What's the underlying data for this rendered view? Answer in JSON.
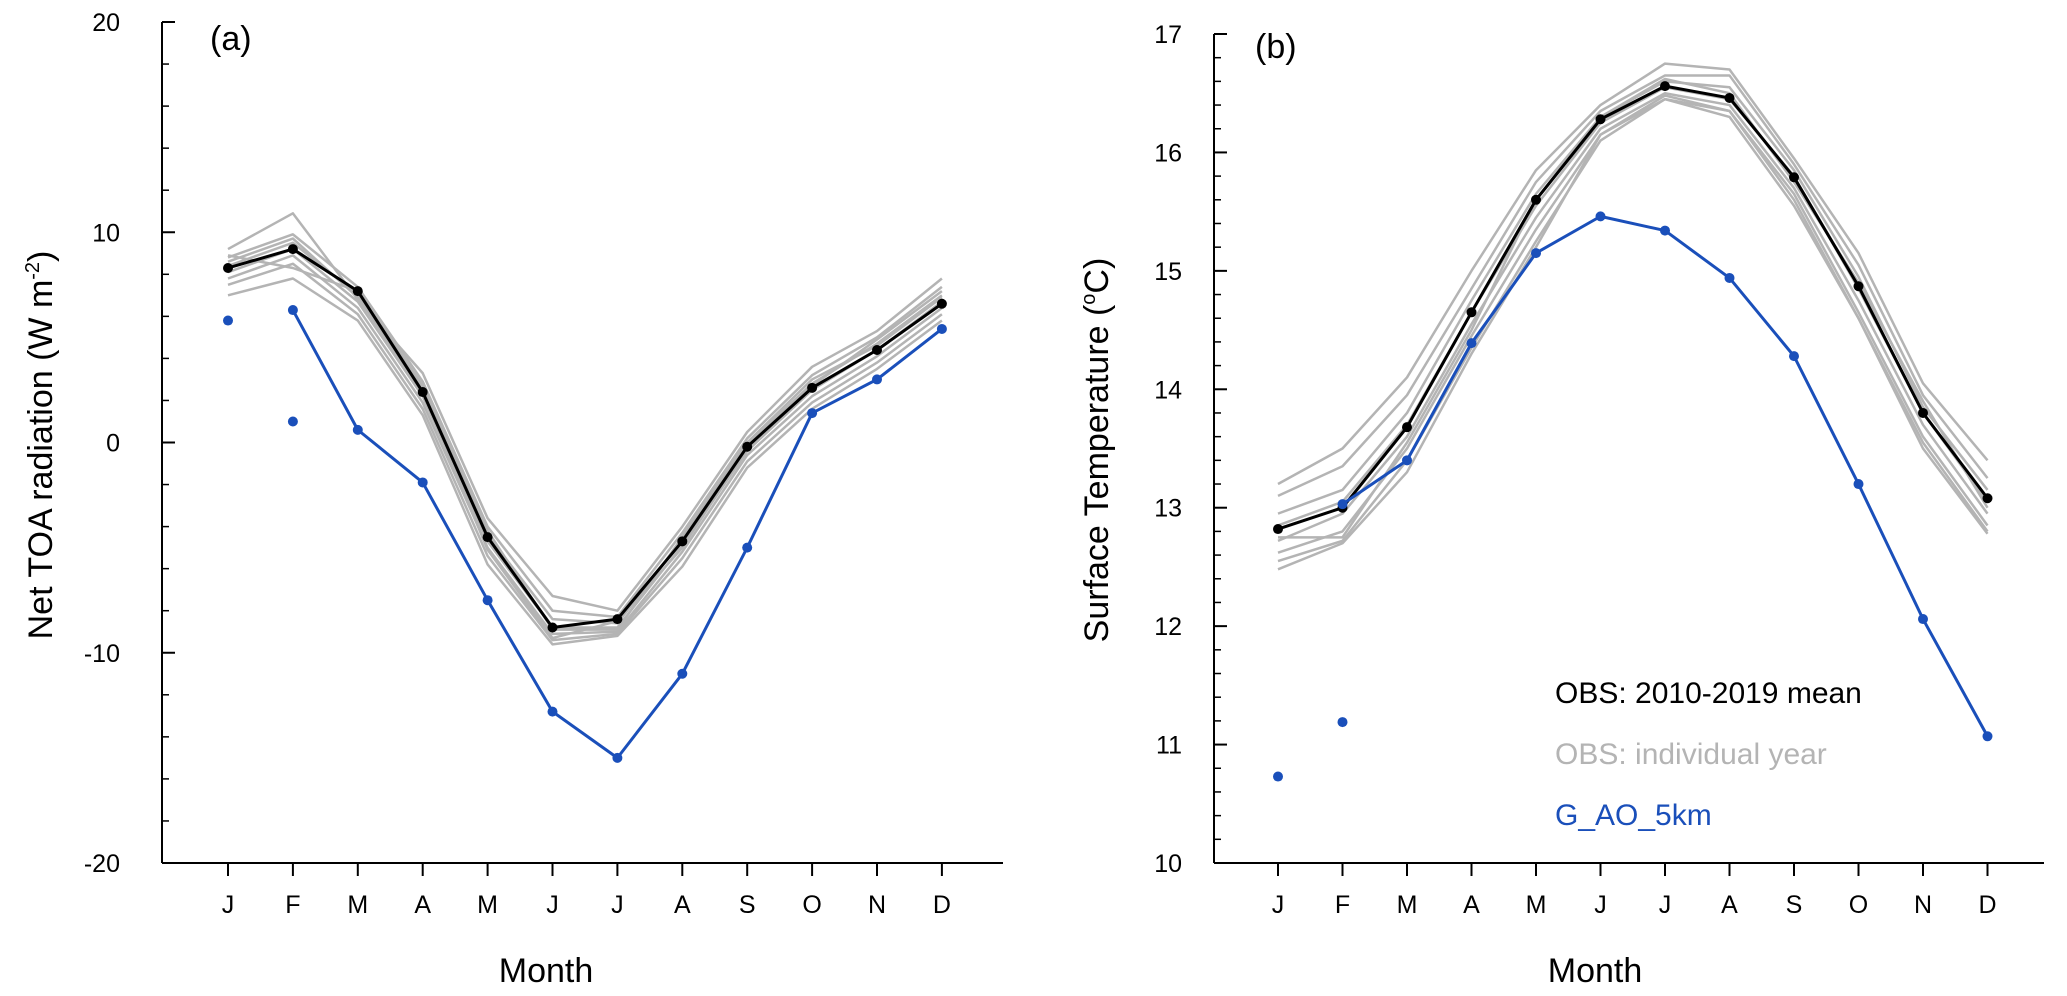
{
  "colors": {
    "mean": "#000000",
    "individual": "#b4b4b4",
    "model": "#1a4fba"
  },
  "chart_data": [
    {
      "type": "line",
      "panel_label": "(a)",
      "xlabel": "Month",
      "ylabel_main": "Net TOA radiation (W m",
      "ylabel_sup": "-2",
      "ylabel_close": ")",
      "categories": [
        "J",
        "F",
        "M",
        "A",
        "M",
        "J",
        "J",
        "A",
        "S",
        "O",
        "N",
        "D"
      ],
      "ylim": [
        -20,
        20
      ],
      "yticks": [
        -20,
        -10,
        0,
        10,
        20
      ],
      "ytick_labels": [
        "-20",
        "-10",
        "0",
        "10",
        "20"
      ],
      "series": [
        {
          "name": "OBS: individual year",
          "role": "individual",
          "values": [
            9.2,
            10.9,
            6.8,
            3.3,
            -3.6,
            -7.3,
            -8.0,
            -4.0,
            0.5,
            3.6,
            5.3,
            7.8
          ]
        },
        {
          "name": "OBS: individual year",
          "role": "individual",
          "values": [
            8.8,
            9.9,
            7.4,
            2.9,
            -4.0,
            -8.0,
            -8.3,
            -4.3,
            0.2,
            3.2,
            5.0,
            7.4
          ]
        },
        {
          "name": "OBS: individual year",
          "role": "individual",
          "values": [
            8.4,
            9.5,
            7.0,
            2.5,
            -4.4,
            -8.4,
            -8.6,
            -4.6,
            -0.1,
            2.8,
            4.7,
            7.0
          ]
        },
        {
          "name": "OBS: individual year",
          "role": "individual",
          "values": [
            8.1,
            9.2,
            6.7,
            2.2,
            -4.7,
            -8.8,
            -8.8,
            -4.9,
            -0.4,
            2.5,
            4.4,
            6.7
          ]
        },
        {
          "name": "OBS: individual year",
          "role": "individual",
          "values": [
            7.8,
            8.9,
            6.4,
            1.9,
            -5.0,
            -9.1,
            -9.0,
            -5.2,
            -0.6,
            2.2,
            4.1,
            6.4
          ]
        },
        {
          "name": "OBS: individual year",
          "role": "individual",
          "values": [
            7.5,
            8.5,
            6.1,
            1.6,
            -5.4,
            -9.4,
            -9.1,
            -5.5,
            -0.9,
            1.9,
            3.8,
            6.1
          ]
        },
        {
          "name": "OBS: individual year",
          "role": "individual",
          "values": [
            7.0,
            7.8,
            5.8,
            1.3,
            -5.8,
            -9.6,
            -9.2,
            -5.9,
            -1.2,
            1.6,
            3.5,
            5.8
          ]
        },
        {
          "name": "OBS: individual year",
          "role": "individual",
          "values": [
            8.9,
            8.3,
            7.2,
            2.7,
            -4.2,
            -8.9,
            -8.9,
            -4.5,
            0.0,
            3.0,
            4.6,
            6.9
          ]
        },
        {
          "name": "OBS: individual year",
          "role": "individual",
          "values": [
            8.6,
            9.7,
            6.9,
            2.4,
            -5.1,
            -9.3,
            -8.5,
            -5.0,
            -0.3,
            2.7,
            4.9,
            7.2
          ]
        },
        {
          "name": "OBS: 2010-2019 mean",
          "role": "mean",
          "values": [
            8.3,
            9.2,
            7.2,
            2.4,
            -4.5,
            -8.8,
            -8.4,
            -4.7,
            -0.2,
            2.6,
            4.4,
            6.6
          ]
        },
        {
          "name": "G_AO_5km",
          "role": "model",
          "values": [
            5.8,
            1.0,
            0.6,
            -1.9,
            -7.5,
            -12.8,
            -15.0,
            -11.0,
            -5.0,
            1.4,
            3.0,
            5.4
          ],
          "isolated_points": [
            0,
            1
          ],
          "extra_points": [
            {
              "index": 1,
              "value": 6.3
            }
          ]
        }
      ]
    },
    {
      "type": "line",
      "panel_label": "(b)",
      "xlabel": "Month",
      "ylabel_main": "Surface Temperature (",
      "ylabel_sup": "o",
      "ylabel_close": "C)",
      "categories": [
        "J",
        "F",
        "M",
        "A",
        "M",
        "J",
        "J",
        "A",
        "S",
        "O",
        "N",
        "D"
      ],
      "ylim": [
        10,
        17
      ],
      "yticks": [
        10,
        11,
        12,
        13,
        14,
        15,
        16,
        17
      ],
      "ytick_labels": [
        "10",
        "11",
        "12",
        "13",
        "14",
        "15",
        "16",
        "17"
      ],
      "legend": {
        "placement": "bottom-right",
        "entries": [
          {
            "label": "OBS: 2010-2019 mean",
            "role": "mean"
          },
          {
            "label": "OBS: individual year",
            "role": "individual"
          },
          {
            "label": "G_AO_5km",
            "role": "model"
          }
        ]
      },
      "series": [
        {
          "name": "OBS: individual year",
          "role": "individual",
          "values": [
            13.2,
            13.5,
            14.1,
            15.0,
            15.85,
            16.4,
            16.75,
            16.7,
            15.95,
            15.15,
            14.05,
            13.4
          ]
        },
        {
          "name": "OBS: individual year",
          "role": "individual",
          "values": [
            13.1,
            13.35,
            13.95,
            14.85,
            15.75,
            16.35,
            16.65,
            16.65,
            15.9,
            15.05,
            13.95,
            13.25
          ]
        },
        {
          "name": "OBS: individual year",
          "role": "individual",
          "values": [
            12.95,
            13.15,
            13.8,
            14.75,
            15.65,
            16.3,
            16.6,
            16.55,
            15.85,
            14.95,
            13.85,
            13.15
          ]
        },
        {
          "name": "OBS: individual year",
          "role": "individual",
          "values": [
            12.85,
            13.05,
            13.7,
            14.65,
            15.55,
            16.25,
            16.55,
            16.45,
            15.8,
            14.85,
            13.8,
            13.05
          ]
        },
        {
          "name": "OBS: individual year",
          "role": "individual",
          "values": [
            12.72,
            12.95,
            13.6,
            14.55,
            15.45,
            16.2,
            16.5,
            16.4,
            15.7,
            14.75,
            13.7,
            12.95
          ]
        },
        {
          "name": "OBS: individual year",
          "role": "individual",
          "values": [
            12.62,
            12.8,
            13.5,
            14.45,
            15.35,
            16.15,
            16.48,
            16.35,
            15.65,
            14.65,
            13.6,
            12.85
          ]
        },
        {
          "name": "OBS: individual year",
          "role": "individual",
          "values": [
            12.55,
            12.72,
            13.4,
            14.35,
            15.25,
            16.1,
            16.45,
            16.35,
            15.6,
            14.6,
            13.55,
            12.8
          ]
        },
        {
          "name": "OBS: individual year",
          "role": "individual",
          "values": [
            12.48,
            12.7,
            13.3,
            14.3,
            15.2,
            16.15,
            16.45,
            16.3,
            15.55,
            14.6,
            13.5,
            12.78
          ]
        },
        {
          "name": "OBS: individual year",
          "role": "individual",
          "values": [
            12.75,
            12.75,
            13.55,
            14.5,
            15.6,
            16.3,
            16.62,
            16.5,
            15.75,
            14.9,
            13.9,
            13.0
          ]
        },
        {
          "name": "OBS: 2010-2019 mean",
          "role": "mean",
          "values": [
            12.82,
            13.0,
            13.68,
            14.65,
            15.6,
            16.28,
            16.56,
            16.46,
            15.79,
            14.87,
            13.8,
            13.08
          ]
        },
        {
          "name": "G_AO_5km",
          "role": "model",
          "values": [
            10.73,
            11.19,
            13.4,
            14.39,
            15.15,
            15.46,
            15.34,
            14.94,
            14.28,
            13.2,
            12.06,
            11.07
          ],
          "isolated_points": [
            0,
            1
          ],
          "extra_points": [
            {
              "index": 1,
              "value": 13.03
            }
          ]
        }
      ]
    }
  ]
}
